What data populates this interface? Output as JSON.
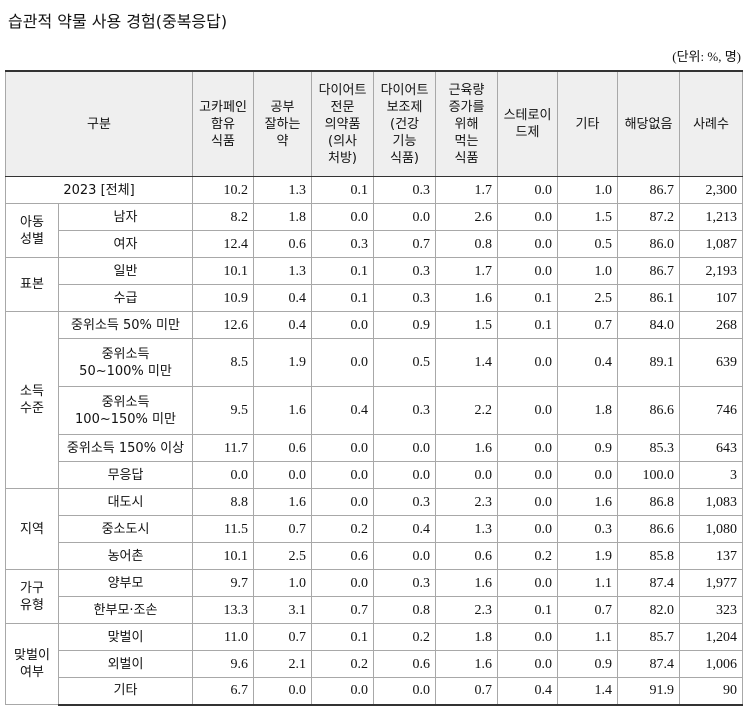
{
  "title": "습관적 약물 사용 경험(중복응답)",
  "unit": "(단위: %, 명)",
  "table": {
    "header": [
      "구분",
      "고카페인\n함유\n식품",
      "공부\n잘하는\n약",
      "다이어트\n전문\n의약품\n(의사\n처방)",
      "다이어트\n보조제\n(건강\n기능\n식품)",
      "근육량\n증가를\n위해\n먹는\n식품",
      "스테로이\n드제",
      "기타",
      "해당없음",
      "사례수"
    ],
    "total": {
      "label": "2023 [전체]",
      "values": [
        "10.2",
        "1.3",
        "0.1",
        "0.3",
        "1.7",
        "0.0",
        "1.0",
        "86.7",
        "2,300"
      ]
    },
    "groups": [
      {
        "label": "아동\n성별",
        "rows": [
          {
            "label": "남자",
            "values": [
              "8.2",
              "1.8",
              "0.0",
              "0.0",
              "2.6",
              "0.0",
              "1.5",
              "87.2",
              "1,213"
            ]
          },
          {
            "label": "여자",
            "values": [
              "12.4",
              "0.6",
              "0.3",
              "0.7",
              "0.8",
              "0.0",
              "0.5",
              "86.0",
              "1,087"
            ]
          }
        ]
      },
      {
        "label": "표본",
        "rows": [
          {
            "label": "일반",
            "values": [
              "10.1",
              "1.3",
              "0.1",
              "0.3",
              "1.7",
              "0.0",
              "1.0",
              "86.7",
              "2,193"
            ]
          },
          {
            "label": "수급",
            "values": [
              "10.9",
              "0.4",
              "0.1",
              "0.3",
              "1.6",
              "0.1",
              "2.5",
              "86.1",
              "107"
            ]
          }
        ]
      },
      {
        "label": "소득\n수준",
        "rows": [
          {
            "label": "중위소득 50% 미만",
            "values": [
              "12.6",
              "0.4",
              "0.0",
              "0.9",
              "1.5",
              "0.1",
              "0.7",
              "84.0",
              "268"
            ]
          },
          {
            "label": "중위소득\n50~100% 미만",
            "values": [
              "8.5",
              "1.9",
              "0.0",
              "0.5",
              "1.4",
              "0.0",
              "0.4",
              "89.1",
              "639"
            ]
          },
          {
            "label": "중위소득\n100~150% 미만",
            "values": [
              "9.5",
              "1.6",
              "0.4",
              "0.3",
              "2.2",
              "0.0",
              "1.8",
              "86.6",
              "746"
            ]
          },
          {
            "label": "중위소득 150% 이상",
            "values": [
              "11.7",
              "0.6",
              "0.0",
              "0.0",
              "1.6",
              "0.0",
              "0.9",
              "85.3",
              "643"
            ]
          },
          {
            "label": "무응답",
            "values": [
              "0.0",
              "0.0",
              "0.0",
              "0.0",
              "0.0",
              "0.0",
              "0.0",
              "100.0",
              "3"
            ]
          }
        ]
      },
      {
        "label": "지역",
        "rows": [
          {
            "label": "대도시",
            "values": [
              "8.8",
              "1.6",
              "0.0",
              "0.3",
              "2.3",
              "0.0",
              "1.6",
              "86.8",
              "1,083"
            ]
          },
          {
            "label": "중소도시",
            "values": [
              "11.5",
              "0.7",
              "0.2",
              "0.4",
              "1.3",
              "0.0",
              "0.3",
              "86.6",
              "1,080"
            ]
          },
          {
            "label": "농어촌",
            "values": [
              "10.1",
              "2.5",
              "0.6",
              "0.0",
              "0.6",
              "0.2",
              "1.9",
              "85.8",
              "137"
            ]
          }
        ]
      },
      {
        "label": "가구\n유형",
        "rows": [
          {
            "label": "양부모",
            "values": [
              "9.7",
              "1.0",
              "0.0",
              "0.3",
              "1.6",
              "0.0",
              "1.1",
              "87.4",
              "1,977"
            ]
          },
          {
            "label": "한부모·조손",
            "values": [
              "13.3",
              "3.1",
              "0.7",
              "0.8",
              "2.3",
              "0.1",
              "0.7",
              "82.0",
              "323"
            ]
          }
        ]
      },
      {
        "label": "맞벌이\n여부",
        "rows": [
          {
            "label": "맞벌이",
            "values": [
              "11.0",
              "0.7",
              "0.1",
              "0.2",
              "1.8",
              "0.0",
              "1.1",
              "85.7",
              "1,204"
            ]
          },
          {
            "label": "외벌이",
            "values": [
              "9.6",
              "2.1",
              "0.2",
              "0.6",
              "1.6",
              "0.0",
              "0.9",
              "87.4",
              "1,006"
            ]
          },
          {
            "label": "기타",
            "values": [
              "6.7",
              "0.0",
              "0.0",
              "0.0",
              "0.7",
              "0.4",
              "1.4",
              "91.9",
              "90"
            ]
          }
        ]
      }
    ]
  }
}
